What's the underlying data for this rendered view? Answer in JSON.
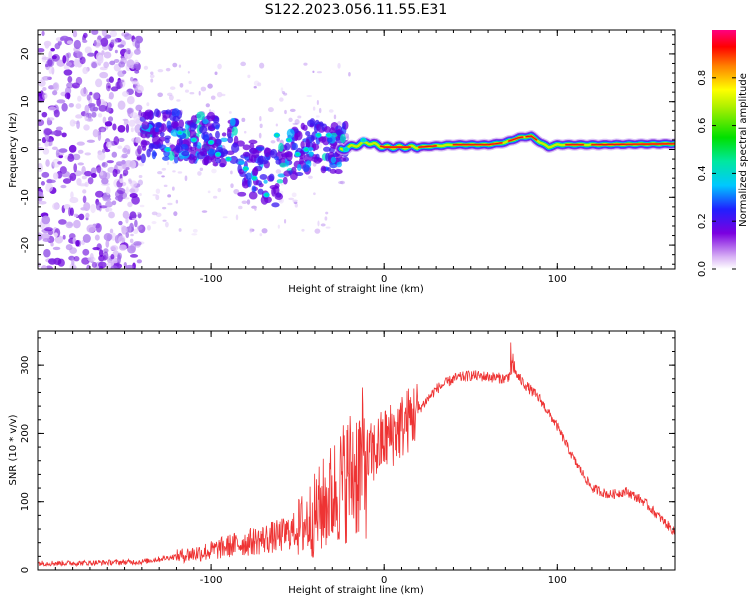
{
  "title": "S122.2023.056.11.55.E31",
  "chart_data": [
    {
      "type": "heatmap",
      "xlabel": "Height of straight line (km)",
      "ylabel": "Frequency (Hz)",
      "xlim": [
        -200,
        168
      ],
      "ylim": [
        -25,
        25
      ],
      "xticks": [
        -100,
        0,
        100
      ],
      "yticks": [
        -20,
        -10,
        0,
        10,
        20
      ],
      "colorbar": {
        "label": "Normalized spectral amplitude",
        "range": [
          0,
          1
        ],
        "ticks": [
          "0.0",
          "0.2",
          "0.4",
          "0.6",
          "0.8"
        ]
      },
      "ridge": {
        "description_points_x_km": [
          -140,
          -120,
          -100,
          -80,
          -60,
          -40,
          -25,
          -10,
          0,
          20,
          40,
          60,
          70,
          78,
          85,
          90,
          95,
          100,
          120,
          168
        ],
        "description_points_freq_hz": [
          3,
          3,
          2,
          1,
          -2,
          1,
          0,
          1.5,
          0.5,
          0.5,
          1,
          1,
          1.5,
          2.5,
          2.8,
          1.5,
          0.5,
          1,
          1,
          1.2
        ]
      }
    },
    {
      "type": "line",
      "xlabel": "Height of straight line (km)",
      "ylabel": "SNR (10 * v/v)",
      "xlim": [
        -200,
        168
      ],
      "ylim": [
        0,
        350
      ],
      "xticks": [
        -100,
        0,
        100
      ],
      "yticks": [
        0,
        100,
        200,
        300
      ],
      "series": [
        {
          "name": "SNR",
          "color": "#ee3333",
          "x": [
            -200,
            -180,
            -160,
            -140,
            -120,
            -100,
            -90,
            -80,
            -70,
            -60,
            -50,
            -40,
            -30,
            -20,
            -10,
            0,
            10,
            20,
            30,
            40,
            50,
            60,
            70,
            75,
            80,
            90,
            100,
            110,
            120,
            130,
            140,
            150,
            160,
            168
          ],
          "y": [
            10,
            10,
            11,
            12,
            20,
            28,
            35,
            40,
            45,
            50,
            60,
            80,
            110,
            140,
            160,
            190,
            210,
            235,
            265,
            280,
            285,
            283,
            280,
            290,
            275,
            250,
            210,
            160,
            120,
            110,
            115,
            100,
            75,
            55
          ]
        }
      ]
    }
  ]
}
